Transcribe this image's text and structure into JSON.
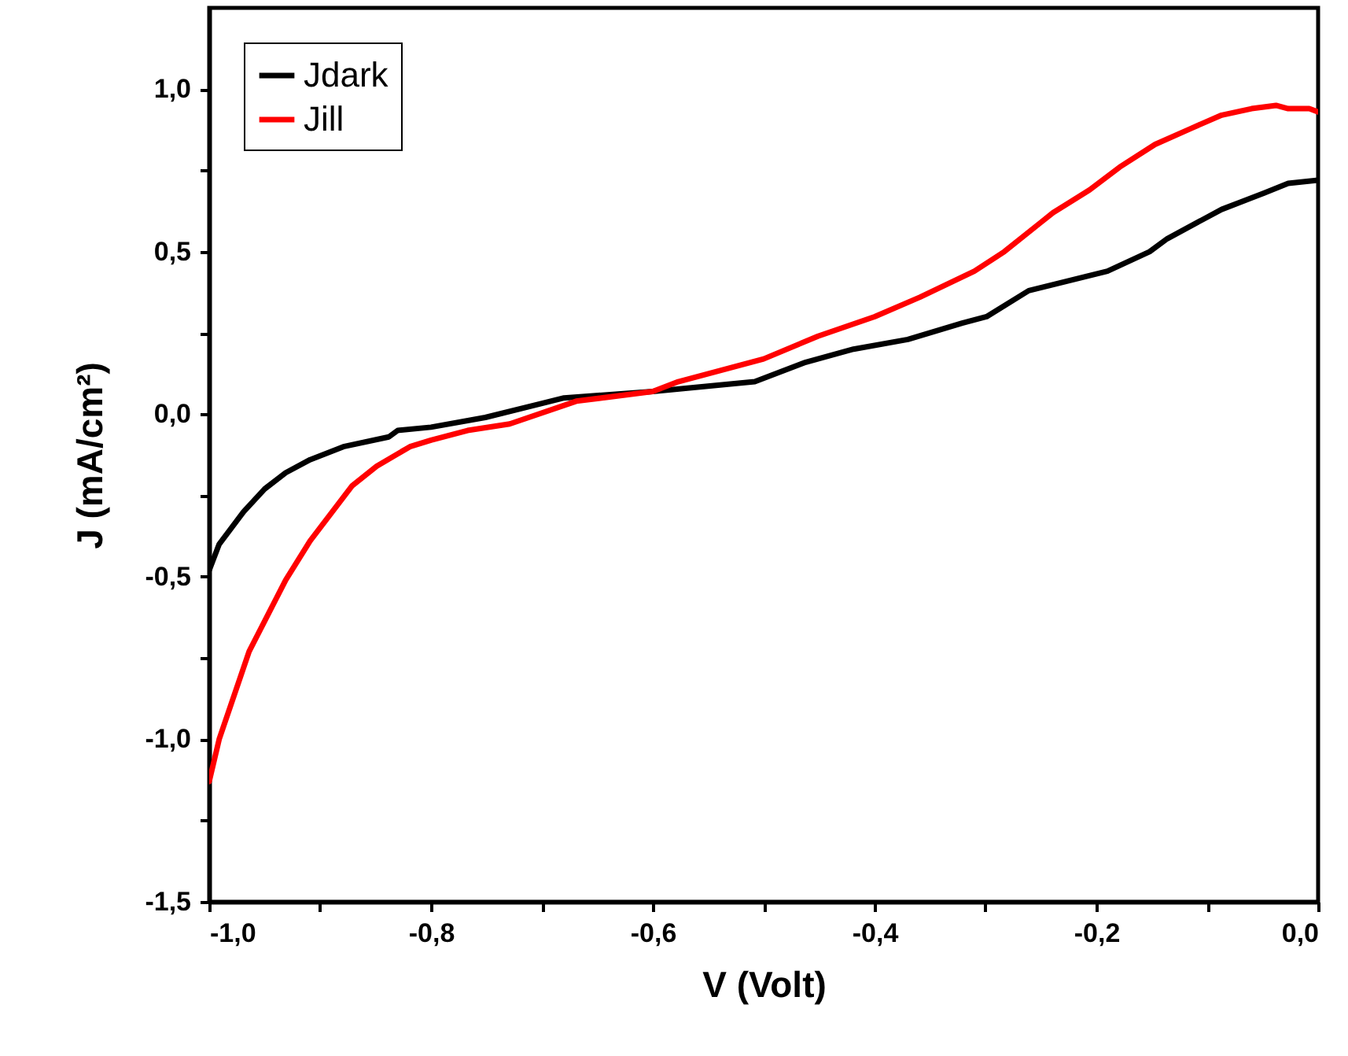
{
  "chart_data": {
    "type": "line",
    "xlabel": "V (Volt)",
    "ylabel": "J (mA/cm²)",
    "xlim": [
      -1,
      0
    ],
    "ylim": [
      -1.5,
      1.25
    ],
    "xticks": [
      {
        "value": -1,
        "label": "-1,0"
      },
      {
        "value": -0.9,
        "label": null
      },
      {
        "value": -0.8,
        "label": "-0,8"
      },
      {
        "value": -0.7,
        "label": null
      },
      {
        "value": -0.6,
        "label": "-0,6"
      },
      {
        "value": -0.5,
        "label": null
      },
      {
        "value": -0.4,
        "label": "-0,4"
      },
      {
        "value": -0.3,
        "label": null
      },
      {
        "value": -0.2,
        "label": "-0,2"
      },
      {
        "value": -0.1,
        "label": null
      },
      {
        "value": 0,
        "label": "0,0"
      }
    ],
    "yticks": [
      {
        "value": -1.5,
        "label": "-1,5"
      },
      {
        "value": -1.25,
        "label": null
      },
      {
        "value": -1,
        "label": "-1,0"
      },
      {
        "value": -0.75,
        "label": null
      },
      {
        "value": -0.5,
        "label": "-0,5"
      },
      {
        "value": -0.25,
        "label": null
      },
      {
        "value": 0,
        "label": "0,0"
      },
      {
        "value": 0.25,
        "label": null
      },
      {
        "value": 0.5,
        "label": "0,5"
      },
      {
        "value": 0.75,
        "label": null
      },
      {
        "value": 1,
        "label": "1,0"
      }
    ],
    "legend": "top left",
    "grid": false,
    "line_style": "solid",
    "series": [
      {
        "name": "Jdark",
        "color": "#000000",
        "x": [
          -1,
          -0.991,
          -0.969,
          -0.95,
          -0.931,
          -0.909,
          -0.879,
          -0.838,
          -0.83,
          -0.8,
          -0.751,
          -0.68,
          -0.6,
          -0.508,
          -0.462,
          -0.419,
          -0.37,
          -0.321,
          -0.299,
          -0.261,
          -0.19,
          -0.152,
          -0.136,
          -0.087,
          -0.049,
          -0.027,
          0
        ],
        "values": [
          -0.48,
          -0.4,
          -0.3,
          -0.23,
          -0.18,
          -0.14,
          -0.1,
          -0.07,
          -0.05,
          -0.04,
          -0.01,
          0.05,
          0.07,
          0.1,
          0.16,
          0.2,
          0.23,
          0.28,
          0.3,
          0.38,
          0.44,
          0.5,
          0.54,
          0.63,
          0.68,
          0.71,
          0.72
        ]
      },
      {
        "name": "Jill",
        "color": "#ff0000",
        "x": [
          -1,
          -0.991,
          -0.964,
          -0.931,
          -0.909,
          -0.871,
          -0.849,
          -0.819,
          -0.8,
          -0.767,
          -0.729,
          -0.669,
          -0.6,
          -0.577,
          -0.5,
          -0.451,
          -0.4,
          -0.359,
          -0.31,
          -0.283,
          -0.25,
          -0.239,
          -0.206,
          -0.179,
          -0.147,
          -0.114,
          -0.087,
          -0.06,
          -0.038,
          -0.027,
          -0.008,
          0
        ],
        "values": [
          -1.13,
          -1,
          -0.73,
          -0.51,
          -0.39,
          -0.22,
          -0.16,
          -0.1,
          -0.08,
          -0.05,
          -0.03,
          0.04,
          0.07,
          0.1,
          0.17,
          0.24,
          0.3,
          0.36,
          0.44,
          0.5,
          0.59,
          0.62,
          0.69,
          0.76,
          0.83,
          0.88,
          0.92,
          0.94,
          0.95,
          0.94,
          0.94,
          0.93
        ]
      }
    ]
  }
}
